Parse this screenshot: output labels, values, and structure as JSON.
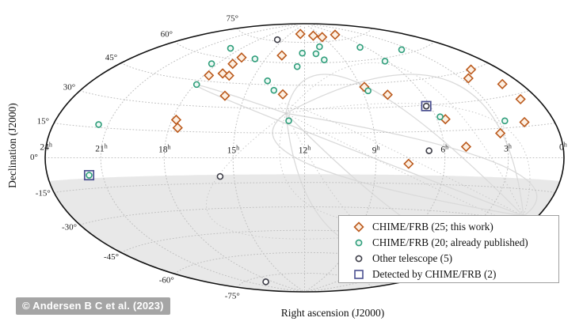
{
  "figure": {
    "xlabel": "Right ascension (J2000)",
    "ylabel": "Declination (J2000)",
    "watermark": "© Andersen B C et al. (2023)"
  },
  "legend": {
    "items": [
      {
        "marker": "diamond",
        "label": "CHIME/FRB (25; this work)",
        "color": "#bb5a1d",
        "fill": "#fdf0e3"
      },
      {
        "marker": "circle",
        "label": "CHIME/FRB (20; already published)",
        "color": "#2f9e7b",
        "fill": "#eff9f5"
      },
      {
        "marker": "circle",
        "label": "Other telescope (5)",
        "color": "#3d3d47",
        "fill": "#ffffff"
      },
      {
        "marker": "square",
        "label": "Detected by CHIME/FRB (2)",
        "color": "#4a4f90",
        "fill": "none"
      }
    ]
  },
  "chart_data": {
    "type": "scatter",
    "projection": "all-sky equal-area (Hammer/Aitoff) map in equatorial coordinates",
    "xlabel": "Right ascension (J2000)",
    "ylabel": "Declination (J2000)",
    "ra_axis_hours": [
      24,
      0
    ],
    "dec_axis_deg": [
      -90,
      90
    ],
    "ra_ticks": [
      {
        "hours": 24,
        "label": "24"
      },
      {
        "hours": 21,
        "label": "21"
      },
      {
        "hours": 18,
        "label": "18"
      },
      {
        "hours": 15,
        "label": "15"
      },
      {
        "hours": 12,
        "label": "12"
      },
      {
        "hours": 9,
        "label": "9"
      },
      {
        "hours": 6,
        "label": "6"
      },
      {
        "hours": 3,
        "label": "3"
      },
      {
        "hours": 0,
        "label": "0"
      }
    ],
    "ra_tick_unit": "h",
    "dec_ticks": [
      {
        "deg": 75,
        "label": "75°"
      },
      {
        "deg": 60,
        "label": "60°"
      },
      {
        "deg": 45,
        "label": "45°"
      },
      {
        "deg": 30,
        "label": "30°"
      },
      {
        "deg": 15,
        "label": "15°"
      },
      {
        "deg": 0,
        "label": "0°"
      },
      {
        "deg": -15,
        "label": "-15°"
      },
      {
        "deg": -30,
        "label": "-30°"
      },
      {
        "deg": -45,
        "label": "-45°"
      },
      {
        "deg": -60,
        "label": "-60°"
      },
      {
        "deg": -75,
        "label": "-75°"
      }
    ],
    "grid": {
      "dec_gridlines_deg": [
        -75,
        -60,
        -45,
        -30,
        -15,
        0,
        15,
        30,
        45,
        60,
        75
      ],
      "ra_gridlines_hours": [
        3,
        6,
        9,
        12,
        15,
        18,
        21
      ],
      "style": "dotted"
    },
    "shaded_below_dec_deg": -10,
    "columns": [
      "ra_hours",
      "dec_deg"
    ],
    "series": [
      {
        "name": "CHIME/FRB (25; this work)",
        "marker": "diamond",
        "color": "#bb5a1d",
        "fill": "#fdf0e3",
        "points": [
          [
            12.9,
            81.5
          ],
          [
            10.4,
            80
          ],
          [
            9.1,
            78.5
          ],
          [
            6.5,
            79
          ],
          [
            13.9,
            65
          ],
          [
            16.9,
            61.5
          ],
          [
            17.0,
            57
          ],
          [
            17.0,
            50.5
          ],
          [
            16.5,
            49.5
          ],
          [
            17.7,
            48.5
          ],
          [
            16.0,
            37
          ],
          [
            13.1,
            39
          ],
          [
            17.8,
            21.5
          ],
          [
            17.6,
            17
          ],
          [
            8.8,
            43
          ],
          [
            7.8,
            37.5
          ],
          [
            5.6,
            21.5
          ],
          [
            1.7,
            45
          ],
          [
            2.6,
            41.5
          ],
          [
            1.1,
            35.5
          ],
          [
            1.0,
            27.5
          ],
          [
            1.7,
            17
          ],
          [
            3.2,
            12.5
          ],
          [
            5.0,
            6
          ],
          [
            7.6,
            -3.5
          ]
        ]
      },
      {
        "name": "CHIME/FRB (20; already published)",
        "marker": "circle",
        "color": "#2f9e7b",
        "fill": "#eff9f5",
        "points": [
          [
            18.9,
            66
          ],
          [
            15.8,
            61.5
          ],
          [
            18.4,
            55.5
          ],
          [
            17.9,
            42.5
          ],
          [
            14.1,
            47.5
          ],
          [
            13.6,
            41.5
          ],
          [
            12.2,
            67
          ],
          [
            10.4,
            71.5
          ],
          [
            11.0,
            66.5
          ],
          [
            10.5,
            62
          ],
          [
            12.5,
            57.5
          ],
          [
            6.5,
            68.5
          ],
          [
            6.2,
            58
          ],
          [
            3.6,
            62.5
          ],
          [
            8.7,
            40.5
          ],
          [
            5.8,
            23
          ],
          [
            2.7,
            18.5
          ],
          [
            21.5,
            16.5
          ],
          [
            12.7,
            22.5
          ],
          [
            21.7,
            -8.5
          ]
        ]
      },
      {
        "name": "Other telescope (5)",
        "marker": "circle",
        "color": "#3d3d47",
        "fill": "#ffffff",
        "points": [
          [
            15.8,
            76
          ],
          [
            6.7,
            4
          ],
          [
            15.6,
            -11
          ],
          [
            19.0,
            -78.5
          ],
          [
            6.2,
            29.5
          ]
        ]
      },
      {
        "name": "Detected by CHIME/FRB (2)",
        "marker": "square",
        "color": "#4a4f90",
        "fill": "none",
        "points": [
          [
            21.7,
            -8.5
          ],
          [
            6.2,
            29.5
          ]
        ]
      }
    ]
  }
}
